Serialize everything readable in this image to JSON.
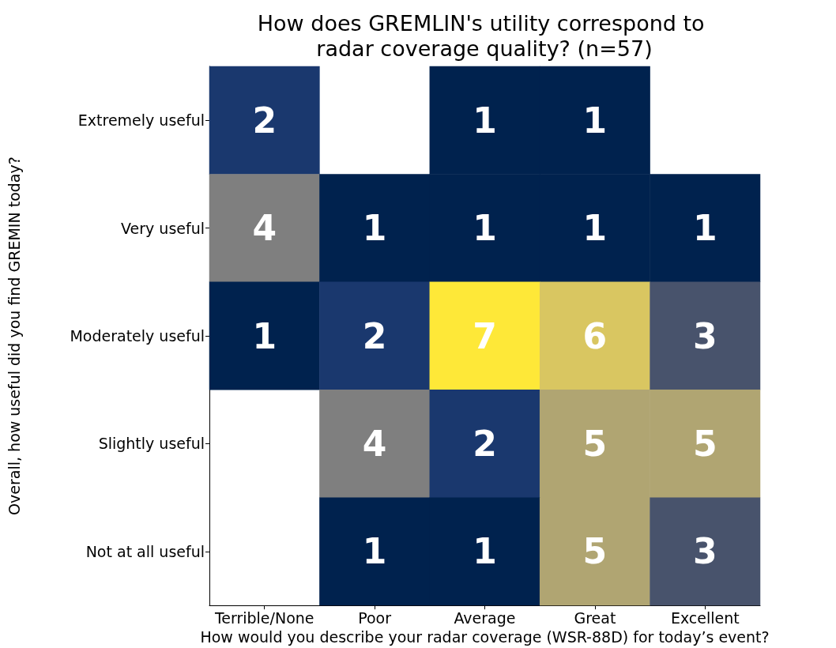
{
  "chart_data": {
    "type": "heatmap",
    "title": "How does GREMLIN's utility correspond to radar coverage quality? (n=57)",
    "xlabel": "How would you describe your radar coverage (WSR-88D) for today’s event?",
    "ylabel": "Overall, how useful did you find GREMIN today?",
    "categories": [
      "Terrible/None",
      "Poor",
      "Average",
      "Great",
      "Excellent"
    ],
    "y_categories": [
      "Extremely useful",
      "Very useful",
      "Moderately useful",
      "Slightly useful",
      "Not at all useful"
    ],
    "cells": [
      [
        2,
        null,
        1,
        1,
        null
      ],
      [
        4,
        1,
        1,
        1,
        1
      ],
      [
        1,
        2,
        7,
        6,
        3
      ],
      [
        null,
        4,
        2,
        5,
        5
      ],
      [
        null,
        1,
        1,
        5,
        3
      ]
    ],
    "data_labels": true
  }
}
